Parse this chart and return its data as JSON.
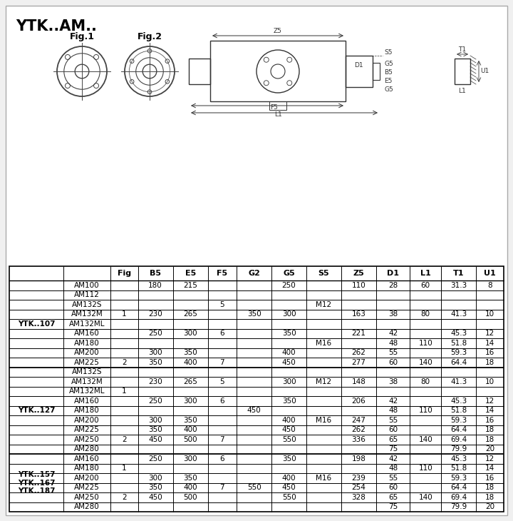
{
  "title": "YTK..AM..",
  "bg_color": "#f5f5f5",
  "sections": [
    {
      "label": "YTK..107",
      "rows": [
        {
          "model": "AM100",
          "fig": "",
          "B5": "180",
          "E5": "215",
          "F5": "",
          "G2": "",
          "G5": "250",
          "S5": "",
          "Z5": "110",
          "D1": "28",
          "L1": "60",
          "T1": "31.3",
          "U1": "8"
        },
        {
          "model": "AM112",
          "fig": "",
          "B5": "",
          "E5": "",
          "F5": "",
          "G2": "",
          "G5": "",
          "S5": "",
          "Z5": "",
          "D1": "",
          "L1": "",
          "T1": "",
          "U1": ""
        },
        {
          "model": "AM132S",
          "fig": "",
          "B5": "",
          "E5": "",
          "F5": "5",
          "G2": "",
          "G5": "",
          "S5": "M12",
          "Z5": "",
          "D1": "",
          "L1": "",
          "T1": "",
          "U1": ""
        },
        {
          "model": "AM132M",
          "fig": "1",
          "B5": "230",
          "E5": "265",
          "F5": "",
          "G2": "350",
          "G5": "300",
          "S5": "",
          "Z5": "163",
          "D1": "38",
          "L1": "80",
          "T1": "41.3",
          "U1": "10"
        },
        {
          "model": "AM132ML",
          "fig": "",
          "B5": "",
          "E5": "",
          "F5": "",
          "G2": "",
          "G5": "",
          "S5": "",
          "Z5": "",
          "D1": "",
          "L1": "",
          "T1": "",
          "U1": ""
        },
        {
          "model": "AM160",
          "fig": "",
          "B5": "250",
          "E5": "300",
          "F5": "6",
          "G2": "",
          "G5": "350",
          "S5": "",
          "Z5": "221",
          "D1": "42",
          "L1": "",
          "T1": "45.3",
          "U1": "12"
        },
        {
          "model": "AM180",
          "fig": "",
          "B5": "",
          "E5": "",
          "F5": "",
          "G2": "",
          "G5": "",
          "S5": "M16",
          "Z5": "",
          "D1": "48",
          "L1": "110",
          "T1": "51.8",
          "U1": "14"
        },
        {
          "model": "AM200",
          "fig": "",
          "B5": "300",
          "E5": "350",
          "F5": "",
          "G2": "",
          "G5": "400",
          "S5": "",
          "Z5": "262",
          "D1": "55",
          "L1": "",
          "T1": "59.3",
          "U1": "16"
        },
        {
          "model": "AM225",
          "fig": "2",
          "B5": "350",
          "E5": "400",
          "F5": "7",
          "G2": "",
          "G5": "450",
          "S5": "",
          "Z5": "277",
          "D1": "60",
          "L1": "140",
          "T1": "64.4",
          "U1": "18"
        }
      ]
    },
    {
      "label": "YTK..127",
      "rows": [
        {
          "model": "AM132S",
          "fig": "",
          "B5": "",
          "E5": "",
          "F5": "",
          "G2": "",
          "G5": "",
          "S5": "",
          "Z5": "",
          "D1": "",
          "L1": "",
          "T1": "",
          "U1": ""
        },
        {
          "model": "AM132M",
          "fig": "",
          "B5": "230",
          "E5": "265",
          "F5": "5",
          "G2": "",
          "G5": "300",
          "S5": "M12",
          "Z5": "148",
          "D1": "38",
          "L1": "80",
          "T1": "41.3",
          "U1": "10"
        },
        {
          "model": "AM132ML",
          "fig": "1",
          "B5": "",
          "E5": "",
          "F5": "",
          "G2": "",
          "G5": "",
          "S5": "",
          "Z5": "",
          "D1": "",
          "L1": "",
          "T1": "",
          "U1": ""
        },
        {
          "model": "AM160",
          "fig": "",
          "B5": "250",
          "E5": "300",
          "F5": "6",
          "G2": "",
          "G5": "350",
          "S5": "",
          "Z5": "206",
          "D1": "42",
          "L1": "",
          "T1": "45.3",
          "U1": "12"
        },
        {
          "model": "AM180",
          "fig": "",
          "B5": "",
          "E5": "",
          "F5": "",
          "G2": "450",
          "G5": "",
          "S5": "",
          "Z5": "",
          "D1": "48",
          "L1": "110",
          "T1": "51.8",
          "U1": "14"
        },
        {
          "model": "AM200",
          "fig": "",
          "B5": "300",
          "E5": "350",
          "F5": "",
          "G2": "",
          "G5": "400",
          "S5": "M16",
          "Z5": "247",
          "D1": "55",
          "L1": "",
          "T1": "59.3",
          "U1": "16"
        },
        {
          "model": "AM225",
          "fig": "",
          "B5": "350",
          "E5": "400",
          "F5": "",
          "G2": "",
          "G5": "450",
          "S5": "",
          "Z5": "262",
          "D1": "60",
          "L1": "",
          "T1": "64.4",
          "U1": "18"
        },
        {
          "model": "AM250",
          "fig": "2",
          "B5": "450",
          "E5": "500",
          "F5": "7",
          "G2": "",
          "G5": "550",
          "S5": "",
          "Z5": "336",
          "D1": "65",
          "L1": "140",
          "T1": "69.4",
          "U1": "18"
        },
        {
          "model": "AM280",
          "fig": "",
          "B5": "",
          "E5": "",
          "F5": "",
          "G2": "",
          "G5": "",
          "S5": "",
          "Z5": "",
          "D1": "75",
          "L1": "",
          "T1": "79.9",
          "U1": "20"
        }
      ]
    },
    {
      "label": "YTK..157\nYTK..167\nYTK..187",
      "rows": [
        {
          "model": "AM160",
          "fig": "",
          "B5": "250",
          "E5": "300",
          "F5": "6",
          "G2": "",
          "G5": "350",
          "S5": "",
          "Z5": "198",
          "D1": "42",
          "L1": "",
          "T1": "45.3",
          "U1": "12"
        },
        {
          "model": "AM180",
          "fig": "1",
          "B5": "",
          "E5": "",
          "F5": "",
          "G2": "",
          "G5": "",
          "S5": "",
          "Z5": "",
          "D1": "48",
          "L1": "110",
          "T1": "51.8",
          "U1": "14"
        },
        {
          "model": "AM200",
          "fig": "",
          "B5": "300",
          "E5": "350",
          "F5": "",
          "G2": "",
          "G5": "400",
          "S5": "M16",
          "Z5": "239",
          "D1": "55",
          "L1": "",
          "T1": "59.3",
          "U1": "16"
        },
        {
          "model": "AM225",
          "fig": "",
          "B5": "350",
          "E5": "400",
          "F5": "7",
          "G2": "550",
          "G5": "450",
          "S5": "",
          "Z5": "254",
          "D1": "60",
          "L1": "",
          "T1": "64.4",
          "U1": "18"
        },
        {
          "model": "AM250",
          "fig": "2",
          "B5": "450",
          "E5": "500",
          "F5": "",
          "G2": "",
          "G5": "550",
          "S5": "",
          "Z5": "328",
          "D1": "65",
          "L1": "140",
          "T1": "69.4",
          "U1": "18"
        },
        {
          "model": "AM280",
          "fig": "",
          "B5": "",
          "E5": "",
          "F5": "",
          "G2": "",
          "G5": "",
          "S5": "",
          "Z5": "",
          "D1": "75",
          "L1": "",
          "T1": "79.9",
          "U1": "20"
        }
      ]
    }
  ]
}
